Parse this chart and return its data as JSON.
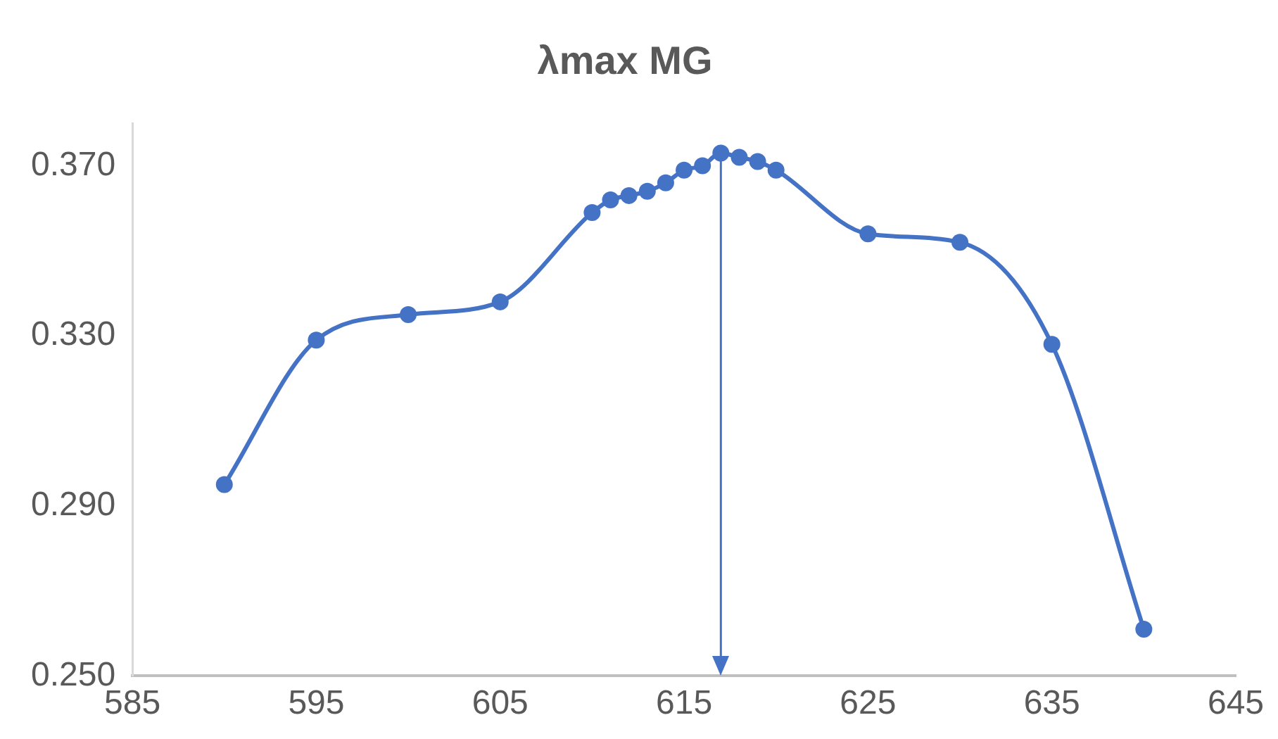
{
  "chart_data": {
    "type": "line",
    "title": "λmax MG",
    "x": [
      590,
      595,
      600,
      605,
      610,
      611,
      612,
      613,
      614,
      615,
      616,
      617,
      618,
      619,
      620,
      625,
      630,
      635,
      640
    ],
    "series": [
      {
        "color": "#4472c4",
        "values": [
          0.295,
          0.329,
          0.335,
          0.338,
          0.359,
          0.362,
          0.363,
          0.364,
          0.366,
          0.369,
          0.37,
          0.373,
          0.372,
          0.371,
          0.369,
          0.354,
          0.352,
          0.328,
          0.261
        ]
      }
    ],
    "xlim": [
      585,
      645
    ],
    "xticks": [
      585,
      595,
      605,
      615,
      625,
      635,
      645
    ],
    "ylim": [
      0.25,
      0.38
    ],
    "yticks": [
      {
        "value": 0.25,
        "label": "0.250"
      },
      {
        "value": 0.29,
        "label": "0.290"
      },
      {
        "value": 0.33,
        "label": "0.330"
      },
      {
        "value": 0.37,
        "label": "0.370"
      }
    ],
    "grid": false,
    "legend": false,
    "marker": "circle",
    "line_style": "solid",
    "ref_lines": [
      {
        "axis": "x",
        "value": 617,
        "color": "#4472c4"
      }
    ]
  }
}
